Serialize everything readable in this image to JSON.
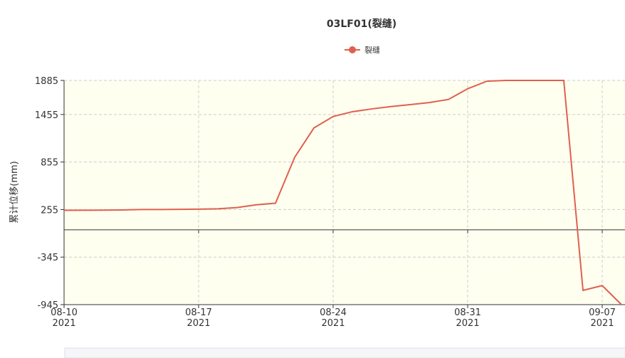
{
  "chart_data": {
    "type": "line",
    "title": "03LF01(裂缝)",
    "y_label": "累计位移(mm)",
    "x": [
      "2021-08-10",
      "2021-08-11",
      "2021-08-12",
      "2021-08-13",
      "2021-08-14",
      "2021-08-15",
      "2021-08-16",
      "2021-08-17",
      "2021-08-18",
      "2021-08-19",
      "2021-08-20",
      "2021-08-21",
      "2021-08-22",
      "2021-08-23",
      "2021-08-24",
      "2021-08-25",
      "2021-08-26",
      "2021-08-27",
      "2021-08-28",
      "2021-08-29",
      "2021-08-30",
      "2021-08-31",
      "2021-09-01",
      "2021-09-02",
      "2021-09-03",
      "2021-09-04",
      "2021-09-05",
      "2021-09-06",
      "2021-09-07",
      "2021-09-08"
    ],
    "series": [
      {
        "name": "裂缝",
        "color": "#e0604e",
        "values": [
          245,
          246,
          248,
          250,
          255,
          255,
          258,
          260,
          265,
          280,
          315,
          335,
          915,
          1285,
          1430,
          1490,
          1525,
          1555,
          1580,
          1605,
          1645,
          1780,
          1875,
          1885,
          1885,
          1885,
          1885,
          -765,
          -705,
          -945
        ]
      }
    ],
    "xlim": [
      "2021-08-10",
      "2021-09-08"
    ],
    "xticks": [
      {
        "value": "2021-08-10",
        "label": "08-10\n2021"
      },
      {
        "value": "2021-08-17",
        "label": "08-17\n2021"
      },
      {
        "value": "2021-08-24",
        "label": "08-24\n2021"
      },
      {
        "value": "2021-08-31",
        "label": "08-31\n2021"
      },
      {
        "value": "2021-09-07",
        "label": "09-07\n2021"
      }
    ],
    "ylim": [
      -945,
      1885
    ],
    "yticks": [
      -945,
      -345,
      255,
      855,
      1455,
      1885
    ],
    "grid": true
  }
}
